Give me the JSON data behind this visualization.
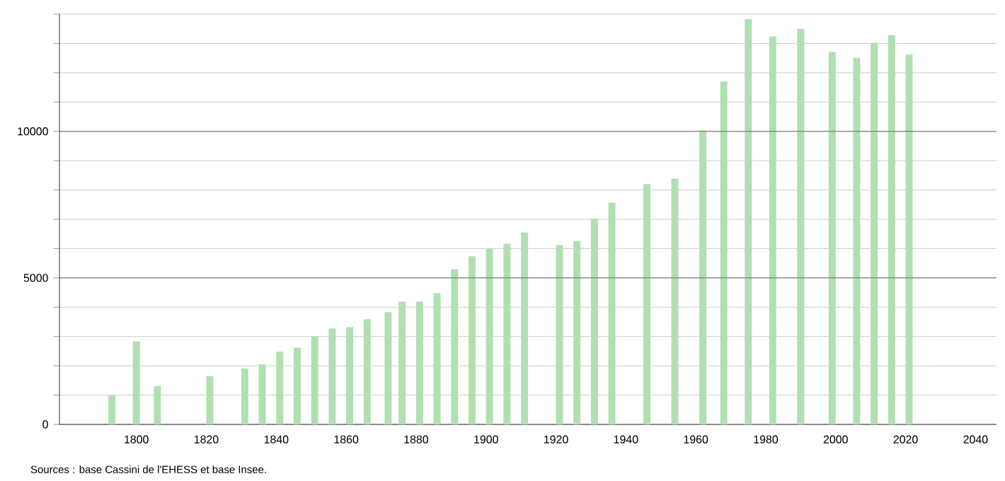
{
  "chart_data": {
    "type": "bar",
    "x": [
      1793,
      1800,
      1806,
      1821,
      1831,
      1836,
      1841,
      1846,
      1851,
      1856,
      1861,
      1866,
      1872,
      1876,
      1881,
      1886,
      1891,
      1896,
      1901,
      1906,
      1911,
      1921,
      1926,
      1931,
      1936,
      1946,
      1954,
      1962,
      1968,
      1975,
      1982,
      1990,
      1999,
      2006,
      2011,
      2016,
      2021
    ],
    "values": [
      985,
      2830,
      1310,
      1650,
      1910,
      2050,
      2480,
      2620,
      3000,
      3270,
      3320,
      3590,
      3830,
      4190,
      4190,
      4480,
      5290,
      5740,
      5990,
      6170,
      6550,
      6120,
      6260,
      7020,
      7570,
      8200,
      8380,
      10030,
      11700,
      13830,
      13240,
      13500,
      12710,
      12510,
      13020,
      13280,
      12620
    ],
    "color": "#b0e0b0",
    "xlim": [
      1778,
      2046
    ],
    "xticks": [
      1800,
      1820,
      1840,
      1860,
      1880,
      1900,
      1920,
      1940,
      1960,
      1980,
      2000,
      2020,
      2040
    ],
    "ylim": [
      0,
      14000
    ],
    "yticks": [
      0,
      {
        "value": 1000,
        "label": null
      },
      {
        "value": 2000,
        "label": null
      },
      {
        "value": 3000,
        "label": null
      },
      {
        "value": 4000,
        "label": null
      },
      5000,
      {
        "value": 6000,
        "label": null
      },
      {
        "value": 7000,
        "label": null
      },
      {
        "value": 8000,
        "label": null
      },
      {
        "value": 9000,
        "label": null
      },
      10000,
      {
        "value": 11000,
        "label": null
      },
      {
        "value": 12000,
        "label": null
      },
      {
        "value": 13000,
        "label": null
      },
      {
        "value": 14000,
        "label": null
      }
    ],
    "grid": "y",
    "annotations": [
      "Sources : base Cassini de l'EHESS et base Insee."
    ]
  }
}
